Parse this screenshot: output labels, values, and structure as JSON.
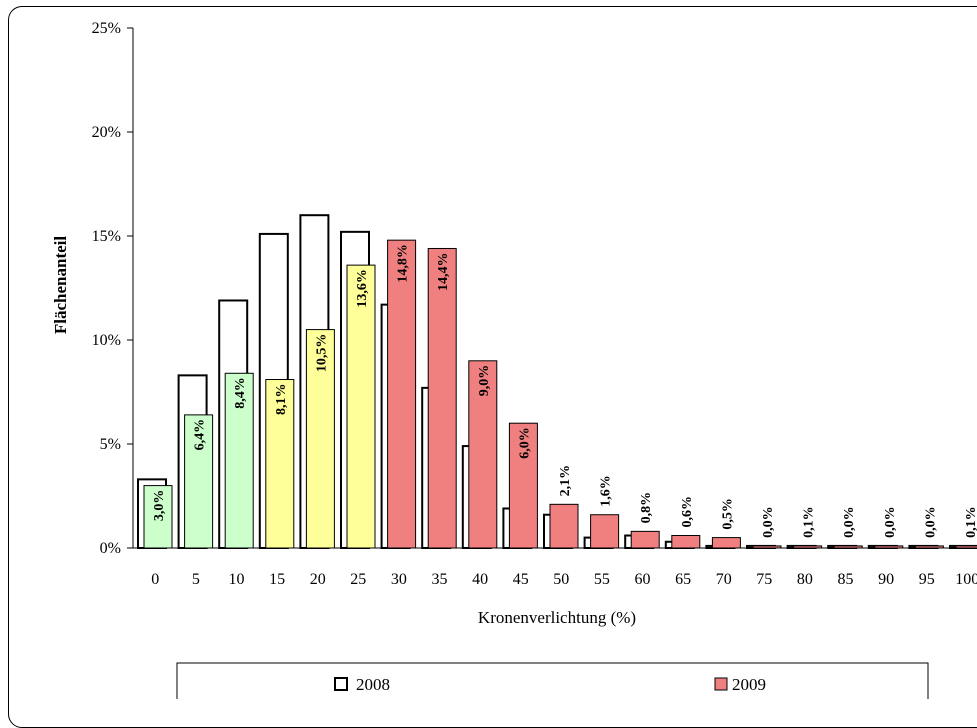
{
  "chart_data": {
    "type": "bar",
    "xlabel": "Kronenverlichtung (%)",
    "ylabel": "Flächenanteil",
    "ylim": [
      0,
      25
    ],
    "yticks": [
      "0%",
      "5%",
      "10%",
      "15%",
      "20%",
      "25%"
    ],
    "categories": [
      "0",
      "5",
      "10",
      "15",
      "20",
      "25",
      "30",
      "35",
      "40",
      "45",
      "50",
      "55",
      "60",
      "65",
      "70",
      "75",
      "80",
      "85",
      "90",
      "95",
      "100"
    ],
    "series": [
      {
        "name": "2008",
        "color": "#ffffff",
        "values": [
          3.3,
          8.3,
          11.9,
          15.1,
          16.0,
          15.2,
          11.7,
          7.7,
          4.9,
          1.9,
          1.6,
          0.5,
          0.6,
          0.3,
          0.1,
          0.1,
          0.1,
          0.1,
          0.1,
          0.1,
          0.1
        ]
      },
      {
        "name": "2009",
        "color": "#f08080",
        "values": [
          3.0,
          6.4,
          8.4,
          8.1,
          10.5,
          13.6,
          14.8,
          14.4,
          9.0,
          6.0,
          2.1,
          1.6,
          0.8,
          0.6,
          0.5,
          0.0,
          0.1,
          0.0,
          0.0,
          0.0,
          0.1
        ],
        "bar_colors": [
          "#ccffcc",
          "#ccffcc",
          "#ccffcc",
          "#ffff99",
          "#ffff99",
          "#ffff99",
          "#f08080",
          "#f08080",
          "#f08080",
          "#f08080",
          "#f08080",
          "#f08080",
          "#f08080",
          "#f08080",
          "#f08080",
          "#f08080",
          "#f08080",
          "#f08080",
          "#f08080",
          "#f08080",
          "#f08080"
        ],
        "labels": [
          "3,0%",
          "6,4%",
          "8,4%",
          "8,1%",
          "10,5%",
          "13,6%",
          "14,8%",
          "14,4%",
          "9,0%",
          "6,0%",
          "2,1%",
          "1,6%",
          "0,8%",
          "0,6%",
          "0,5%",
          "0,0%",
          "0,1%",
          "0,0%",
          "0,0%",
          "0,0%",
          "0,1%"
        ]
      }
    ],
    "grid": false,
    "legend_position": "bottom"
  }
}
